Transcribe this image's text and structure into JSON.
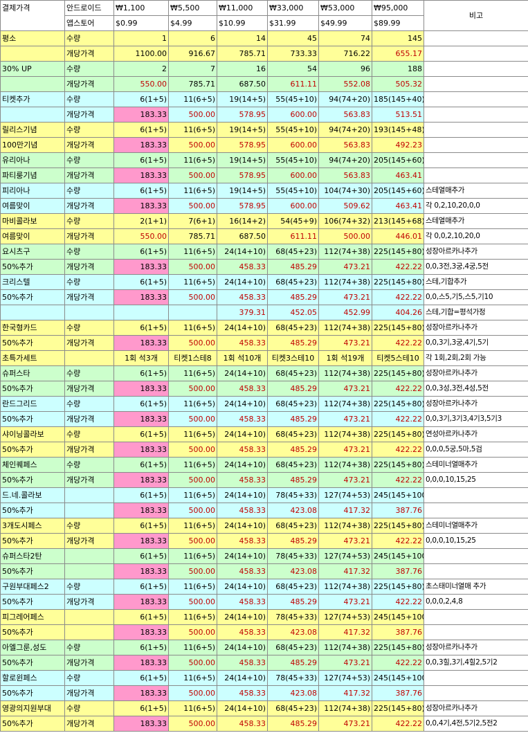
{
  "header": {
    "title": "결제가격",
    "platform_android": "안드로이드",
    "platform_appstore": "앱스토어",
    "won_prices": [
      "₩1,100",
      "₩5,500",
      "₩11,000",
      "₩33,000",
      "₩53,000",
      "₩95,000"
    ],
    "usd_prices": [
      "$0.99",
      "$4.99",
      "$10.99",
      "$31.99",
      "$49.99",
      "$89.99"
    ],
    "remark": "비고"
  },
  "rows": [
    {
      "label": "평소",
      "label_bg": "yellow",
      "type": "수량",
      "type_bg": "yellow",
      "cells": [
        "1",
        "6",
        "14",
        "45",
        "74",
        "145"
      ],
      "cell_bg": "yellow",
      "red": false,
      "remark": ""
    },
    {
      "label": "",
      "label_bg": "yellow",
      "type": "개당가격",
      "type_bg": "yellow",
      "cells": [
        "1100.00",
        "916.67",
        "785.71",
        "733.33",
        "716.22",
        "655.17"
      ],
      "cell_bg": "yellow",
      "red": [
        false,
        false,
        false,
        false,
        false,
        true
      ],
      "remark": ""
    },
    {
      "label": "30% UP",
      "label_bg": "green",
      "type": "수량",
      "type_bg": "green",
      "cells": [
        "2",
        "7",
        "16",
        "54",
        "96",
        "188"
      ],
      "cell_bg": "green",
      "red": false,
      "remark": ""
    },
    {
      "label": "",
      "label_bg": "green",
      "type": "개당가격",
      "type_bg": "green",
      "cells": [
        "550.00",
        "785.71",
        "687.50",
        "611.11",
        "552.08",
        "505.32"
      ],
      "cell_bg": "green",
      "red": [
        true,
        false,
        false,
        true,
        true,
        true
      ],
      "remark": ""
    },
    {
      "label": "티켓추가",
      "label_bg": "cyan",
      "type": "수량",
      "type_bg": "cyan",
      "cells": [
        "6(1+5)",
        "11(6+5)",
        "19(14+5)",
        "55(45+10)",
        "94(74+20)",
        "185(145+40)"
      ],
      "cell_bg": "cyan",
      "red": false,
      "remark": ""
    },
    {
      "label": "",
      "label_bg": "cyan",
      "type": "개당가격",
      "type_bg": "cyan",
      "cells": [
        "183.33",
        "500.00",
        "578.95",
        "600.00",
        "563.83",
        "513.51"
      ],
      "cell_bg": "cyan",
      "first_pink": true,
      "red": [
        false,
        true,
        true,
        true,
        true,
        true
      ],
      "remark": ""
    },
    {
      "label": "릴리스기념",
      "label_bg": "yellow",
      "type": "수량",
      "type_bg": "yellow",
      "cells": [
        "6(1+5)",
        "11(6+5)",
        "19(14+5)",
        "55(45+10)",
        "94(74+20)",
        "193(145+48)"
      ],
      "cell_bg": "yellow",
      "red": false,
      "remark": ""
    },
    {
      "label": "100만기념",
      "label_bg": "yellow",
      "type": "개당가격",
      "type_bg": "yellow",
      "cells": [
        "183.33",
        "500.00",
        "578.95",
        "600.00",
        "563.83",
        "492.23"
      ],
      "cell_bg": "yellow",
      "first_pink": true,
      "red": [
        false,
        true,
        true,
        true,
        true,
        true
      ],
      "remark": ""
    },
    {
      "label": "유리아나",
      "label_bg": "green",
      "type": "수량",
      "type_bg": "green",
      "cells": [
        "6(1+5)",
        "11(6+5)",
        "19(14+5)",
        "55(45+10)",
        "94(74+20)",
        "205(145+60)"
      ],
      "cell_bg": "green",
      "red": false,
      "remark": ""
    },
    {
      "label": "파티룽기념",
      "label_bg": "green",
      "type": "개당가격",
      "type_bg": "green",
      "cells": [
        "183.33",
        "500.00",
        "578.95",
        "600.00",
        "563.83",
        "463.41"
      ],
      "cell_bg": "green",
      "first_pink": true,
      "red": [
        false,
        true,
        true,
        true,
        true,
        true
      ],
      "remark": ""
    },
    {
      "label": "피리아나",
      "label_bg": "cyan",
      "type": "수량",
      "type_bg": "cyan",
      "cells": [
        "6(1+5)",
        "11(6+5)",
        "19(14+5)",
        "55(45+10)",
        "104(74+30)",
        "205(145+60)"
      ],
      "cell_bg": "cyan",
      "red": false,
      "remark": "스테열매추가"
    },
    {
      "label": "여름맞이",
      "label_bg": "cyan",
      "type": "개당가격",
      "type_bg": "cyan",
      "cells": [
        "183.33",
        "500.00",
        "578.95",
        "600.00",
        "509.62",
        "463.41"
      ],
      "cell_bg": "cyan",
      "first_pink": true,
      "red": [
        false,
        true,
        true,
        true,
        true,
        true
      ],
      "remark": "각 0,2,10,20,0,0"
    },
    {
      "label": "마비콜라보",
      "label_bg": "yellow",
      "type": "수량",
      "type_bg": "yellow",
      "cells": [
        "2(1+1)",
        "7(6+1)",
        "16(14+2)",
        "54(45+9)",
        "106(74+32)",
        "213(145+68)"
      ],
      "cell_bg": "yellow",
      "red": false,
      "remark": "스테열매추가"
    },
    {
      "label": "여름맞이",
      "label_bg": "yellow",
      "type": "개당가격",
      "type_bg": "yellow",
      "cells": [
        "550.00",
        "785.71",
        "687.50",
        "611.11",
        "500.00",
        "446.01"
      ],
      "cell_bg": "yellow",
      "red": [
        true,
        false,
        false,
        true,
        true,
        true
      ],
      "remark": "각 0,0,2,10,20,0"
    },
    {
      "label": "요시츠구",
      "label_bg": "green",
      "type": "수량",
      "type_bg": "green",
      "cells": [
        "6(1+5)",
        "11(6+5)",
        "24(14+10)",
        "68(45+23)",
        "112(74+38)",
        "225(145+80)"
      ],
      "cell_bg": "green",
      "red": false,
      "remark": "성장아르카나추가"
    },
    {
      "label": "50%추가",
      "label_bg": "green",
      "type": "개당가격",
      "type_bg": "green",
      "cells": [
        "183.33",
        "500.00",
        "458.33",
        "485.29",
        "473.21",
        "422.22"
      ],
      "cell_bg": "green",
      "first_pink": true,
      "red": [
        false,
        true,
        true,
        true,
        true,
        true
      ],
      "remark": "0,0,3전,3궁,4궁,5전"
    },
    {
      "label": "크리스텔",
      "label_bg": "cyan",
      "type": "수량",
      "type_bg": "cyan",
      "cells": [
        "6(1+5)",
        "11(6+5)",
        "24(14+10)",
        "68(45+23)",
        "112(74+38)",
        "225(145+80)"
      ],
      "cell_bg": "cyan",
      "red": false,
      "remark": "스테,기합추가"
    },
    {
      "label": "50%추가",
      "label_bg": "cyan",
      "type": "개당가격",
      "type_bg": "cyan",
      "cells": [
        "183.33",
        "500.00",
        "458.33",
        "485.29",
        "473.21",
        "422.22"
      ],
      "cell_bg": "cyan",
      "first_pink": true,
      "red": [
        false,
        true,
        true,
        true,
        true,
        true
      ],
      "remark": "0,0,스5,기5,스5,기10"
    },
    {
      "label": "",
      "label_bg": "cyan",
      "type": "",
      "type_bg": "cyan",
      "cells": [
        "",
        "",
        "379.31",
        "452.05",
        "452.99",
        "404.26"
      ],
      "cell_bg": "cyan",
      "red": [
        false,
        false,
        true,
        true,
        true,
        true
      ],
      "remark": "스테,기합=평석가정"
    },
    {
      "label": "한국형카드",
      "label_bg": "yellow",
      "type": "수량",
      "type_bg": "yellow",
      "cells": [
        "6(1+5)",
        "11(6+5)",
        "24(14+10)",
        "68(45+23)",
        "112(74+38)",
        "225(145+80)"
      ],
      "cell_bg": "yellow",
      "red": false,
      "remark": "성장아르카나추가"
    },
    {
      "label": "50%추가",
      "label_bg": "yellow",
      "type": "개당가격",
      "type_bg": "yellow",
      "cells": [
        "183.33",
        "500.00",
        "458.33",
        "485.29",
        "473.21",
        "422.22"
      ],
      "cell_bg": "yellow",
      "first_pink": true,
      "red": [
        false,
        true,
        true,
        true,
        true,
        true
      ],
      "remark": "0,0,3기,3궁,4기,5기"
    },
    {
      "label": "초특가세트",
      "label_bg": "yellow",
      "type": "",
      "type_bg": "yellow",
      "cells": [
        "1회 석3개",
        "티켓1스테8",
        "1회 석10개",
        "티켓3스테10",
        "1회 석19개",
        "티켓5스테10"
      ],
      "cell_bg": "yellow",
      "red": false,
      "center": true,
      "remark": "각 1회,2회,2회 가능"
    },
    {
      "label": "슈퍼스타",
      "label_bg": "green",
      "type": "수량",
      "type_bg": "green",
      "cells": [
        "6(1+5)",
        "11(6+5)",
        "24(14+10)",
        "68(45+23)",
        "112(74+38)",
        "225(145+80)"
      ],
      "cell_bg": "green",
      "red": false,
      "remark": "성장아르카나추가"
    },
    {
      "label": "50%추가",
      "label_bg": "green",
      "type": "개당가격",
      "type_bg": "green",
      "cells": [
        "183.33",
        "500.00",
        "458.33",
        "485.29",
        "473.21",
        "422.22"
      ],
      "cell_bg": "green",
      "first_pink": true,
      "red": [
        false,
        true,
        true,
        true,
        true,
        true
      ],
      "remark": "0,0,3성,3전,4성,5전"
    },
    {
      "label": "란드그리드",
      "label_bg": "cyan",
      "type": "수량",
      "type_bg": "cyan",
      "cells": [
        "6(1+5)",
        "11(6+5)",
        "24(14+10)",
        "68(45+23)",
        "112(74+38)",
        "225(145+80)"
      ],
      "cell_bg": "cyan",
      "red": false,
      "remark": "성장아르카나추가"
    },
    {
      "label": "50%추가",
      "label_bg": "cyan",
      "type": "개당가격",
      "type_bg": "cyan",
      "cells": [
        "183.33",
        "500.00",
        "458.33",
        "485.29",
        "473.21",
        "422.22"
      ],
      "cell_bg": "cyan",
      "first_pink": true,
      "red": [
        false,
        true,
        true,
        true,
        true,
        true
      ],
      "remark": "0,0,3기,3기3,4기3,5기3"
    },
    {
      "label": "샤이닝콜라보",
      "label_bg": "yellow",
      "type": "수량",
      "type_bg": "yellow",
      "cells": [
        "6(1+5)",
        "11(6+5)",
        "24(14+10)",
        "68(45+23)",
        "112(74+38)",
        "225(145+80)"
      ],
      "cell_bg": "yellow",
      "red": false,
      "remark": "연성아르카나추가"
    },
    {
      "label": "50%추가",
      "label_bg": "yellow",
      "type": "개당가격",
      "type_bg": "yellow",
      "cells": [
        "183.33",
        "500.00",
        "458.33",
        "485.29",
        "473.21",
        "422.22"
      ],
      "cell_bg": "yellow",
      "first_pink": true,
      "red": [
        false,
        true,
        true,
        true,
        true,
        true
      ],
      "remark": "0,0,0,5궁,5마,5검"
    },
    {
      "label": "체인퀘페스",
      "label_bg": "green",
      "type": "수량",
      "type_bg": "green",
      "cells": [
        "6(1+5)",
        "11(6+5)",
        "24(14+10)",
        "68(45+23)",
        "112(74+38)",
        "225(145+80)"
      ],
      "cell_bg": "green",
      "red": false,
      "remark": "스테미너열매추가"
    },
    {
      "label": "50%추가",
      "label_bg": "green",
      "type": "개당가격",
      "type_bg": "green",
      "cells": [
        "183.33",
        "500.00",
        "458.33",
        "485.29",
        "473.21",
        "422.22"
      ],
      "cell_bg": "green",
      "first_pink": true,
      "red": [
        false,
        true,
        true,
        true,
        true,
        true
      ],
      "remark": "0,0,0,10,15,25"
    },
    {
      "label": "드.네.콜라보",
      "label_bg": "cyan",
      "type": "",
      "type_bg": "cyan",
      "cells": [
        "6(1+5)",
        "11(6+5)",
        "24(14+10)",
        "78(45+33)",
        "127(74+53)",
        "245(145+100)"
      ],
      "cell_bg": "cyan",
      "red": false,
      "remark": ""
    },
    {
      "label": "50%추가",
      "label_bg": "cyan",
      "type": "",
      "type_bg": "cyan",
      "cells": [
        "183.33",
        "500.00",
        "458.33",
        "423.08",
        "417.32",
        "387.76"
      ],
      "cell_bg": "cyan",
      "first_pink": true,
      "red": [
        false,
        true,
        true,
        true,
        true,
        true
      ],
      "remark": ""
    },
    {
      "label": "3개도시페스",
      "label_bg": "yellow",
      "type": "수량",
      "type_bg": "yellow",
      "cells": [
        "6(1+5)",
        "11(6+5)",
        "24(14+10)",
        "68(45+23)",
        "112(74+38)",
        "225(145+80)"
      ],
      "cell_bg": "yellow",
      "red": false,
      "remark": "스테미너열매추가"
    },
    {
      "label": "50%추가",
      "label_bg": "yellow",
      "type": "개당가격",
      "type_bg": "yellow",
      "cells": [
        "183.33",
        "500.00",
        "458.33",
        "485.29",
        "473.21",
        "422.22"
      ],
      "cell_bg": "yellow",
      "first_pink": true,
      "red": [
        false,
        true,
        true,
        true,
        true,
        true
      ],
      "remark": "0,0,0,10,15,25"
    },
    {
      "label": "슈퍼스타2탄",
      "label_bg": "green",
      "type": "",
      "type_bg": "green",
      "cells": [
        "6(1+5)",
        "11(6+5)",
        "24(14+10)",
        "78(45+33)",
        "127(74+53)",
        "245(145+100)"
      ],
      "cell_bg": "green",
      "red": false,
      "remark": ""
    },
    {
      "label": "50%추가",
      "label_bg": "green",
      "type": "",
      "type_bg": "green",
      "cells": [
        "183.33",
        "500.00",
        "458.33",
        "423.08",
        "417.32",
        "387.76"
      ],
      "cell_bg": "green",
      "first_pink": true,
      "red": [
        false,
        true,
        true,
        true,
        true,
        true
      ],
      "remark": ""
    },
    {
      "label": "구원부대페스2",
      "label_bg": "cyan",
      "type": "수량",
      "type_bg": "cyan",
      "cells": [
        "6(1+5)",
        "11(6+5)",
        "24(14+10)",
        "68(45+23)",
        "112(74+38)",
        "225(145+80)"
      ],
      "cell_bg": "cyan",
      "red": false,
      "remark": "초스태미너열매 추가"
    },
    {
      "label": "50%추가",
      "label_bg": "cyan",
      "type": "개당가격",
      "type_bg": "cyan",
      "cells": [
        "183.33",
        "500.00",
        "458.33",
        "485.29",
        "473.21",
        "422.22"
      ],
      "cell_bg": "cyan",
      "first_pink": true,
      "red": [
        false,
        true,
        true,
        true,
        true,
        true
      ],
      "remark": "0,0,0,2,4,8"
    },
    {
      "label": "피그레어페스",
      "label_bg": "yellow",
      "type": "",
      "type_bg": "yellow",
      "cells": [
        "6(1+5)",
        "11(6+5)",
        "24(14+10)",
        "78(45+33)",
        "127(74+53)",
        "245(145+100)"
      ],
      "cell_bg": "yellow",
      "red": false,
      "remark": ""
    },
    {
      "label": "50%추가",
      "label_bg": "yellow",
      "type": "",
      "type_bg": "yellow",
      "cells": [
        "183.33",
        "500.00",
        "458.33",
        "423.08",
        "417.32",
        "387.76"
      ],
      "cell_bg": "yellow",
      "first_pink": true,
      "red": [
        false,
        true,
        true,
        true,
        true,
        true
      ],
      "remark": ""
    },
    {
      "label": "아엘그룬,성도",
      "label_bg": "green",
      "type": "수량",
      "type_bg": "green",
      "cells": [
        "6(1+5)",
        "11(6+5)",
        "24(14+10)",
        "68(45+23)",
        "112(74+38)",
        "225(145+80)"
      ],
      "cell_bg": "green",
      "red": false,
      "remark": "성장아르카나추가"
    },
    {
      "label": "50%추가",
      "label_bg": "green",
      "type": "개당가격",
      "type_bg": "green",
      "cells": [
        "183.33",
        "500.00",
        "458.33",
        "485.29",
        "473.21",
        "422.22"
      ],
      "cell_bg": "green",
      "first_pink": true,
      "red": [
        false,
        true,
        true,
        true,
        true,
        true
      ],
      "remark": "0,0,3힐,3기,4힐2,5기2"
    },
    {
      "label": "할로윈페스",
      "label_bg": "cyan",
      "type": "수량",
      "type_bg": "cyan",
      "cells": [
        "6(1+5)",
        "11(6+5)",
        "24(14+10)",
        "78(45+33)",
        "127(74+53)",
        "245(145+100)"
      ],
      "cell_bg": "cyan",
      "red": false,
      "remark": ""
    },
    {
      "label": "50%추가",
      "label_bg": "cyan",
      "type": "개당가격",
      "type_bg": "cyan",
      "cells": [
        "183.33",
        "500.00",
        "458.33",
        "423.08",
        "417.32",
        "387.76"
      ],
      "cell_bg": "cyan",
      "first_pink": true,
      "red": [
        false,
        true,
        true,
        true,
        true,
        true
      ],
      "remark": ""
    },
    {
      "label": "영광의지원부대",
      "label_bg": "yellow",
      "type": "수량",
      "type_bg": "yellow",
      "cells": [
        "6(1+5)",
        "11(6+5)",
        "24(14+10)",
        "68(45+23)",
        "112(74+38)",
        "225(145+80)"
      ],
      "cell_bg": "yellow",
      "red": false,
      "remark": "성장아르카나추가"
    },
    {
      "label": "50%추가",
      "label_bg": "yellow",
      "type": "개당가격",
      "type_bg": "yellow",
      "cells": [
        "183.33",
        "500.00",
        "458.33",
        "485.29",
        "473.21",
        "422.22"
      ],
      "cell_bg": "yellow",
      "first_pink": true,
      "red": [
        false,
        true,
        true,
        true,
        true,
        true
      ],
      "remark": "0,0,4기,4전,5기2,5전2"
    }
  ]
}
